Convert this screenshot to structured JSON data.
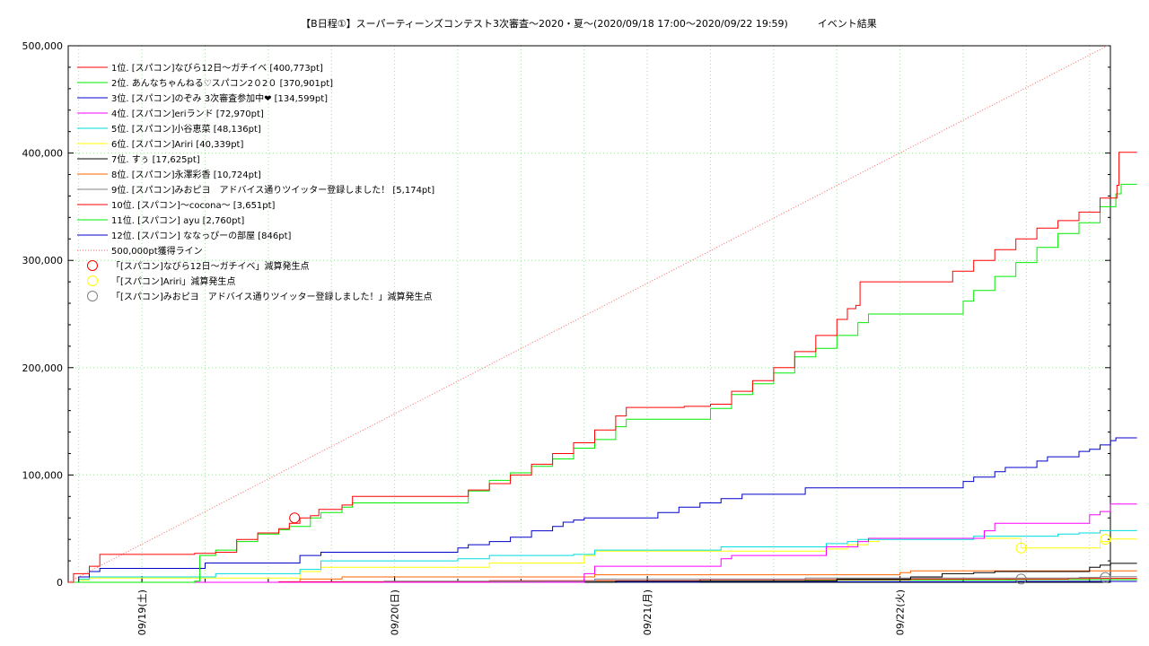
{
  "chart_data": {
    "type": "line",
    "title": "【B日程①】スーパーティーンズコンテスト3次審査〜2020・夏〜(2020/09/18 17:00〜2020/09/22 19:59)　　　イベント結果",
    "xlabel": "",
    "ylabel": "",
    "x_range": [
      "09/18 17:00",
      "09/22 19:59"
    ],
    "ylim": [
      0,
      500000
    ],
    "y_ticks": [
      "0",
      "100,000",
      "200,000",
      "300,000",
      "400,000",
      "500,000"
    ],
    "x_ticks": [
      {
        "label": "09/19(土)",
        "t": 7
      },
      {
        "label": "09/20(日)",
        "t": 31
      },
      {
        "label": "09/21(月)",
        "t": 55
      },
      {
        "label": "09/22(火)",
        "t": 79
      }
    ],
    "grid": true,
    "legend_position": "top-left",
    "series": [
      {
        "name": "1位. [スパコン]なびら12日〜ガチイベ [400,773pt]",
        "color": "#ff0000",
        "points": [
          [
            0,
            0
          ],
          [
            0.5,
            8000
          ],
          [
            2,
            15000
          ],
          [
            3,
            26000
          ],
          [
            12,
            27000
          ],
          [
            14,
            28000
          ],
          [
            16,
            40000
          ],
          [
            18,
            46000
          ],
          [
            20,
            50000
          ],
          [
            21,
            55000
          ],
          [
            22,
            60000
          ],
          [
            23,
            62000
          ],
          [
            23.8,
            68000
          ],
          [
            26,
            72000
          ],
          [
            27,
            80000
          ],
          [
            36,
            80000
          ],
          [
            38,
            86000
          ],
          [
            40,
            92000
          ],
          [
            42,
            100000
          ],
          [
            44,
            110000
          ],
          [
            46,
            120000
          ],
          [
            48,
            130000
          ],
          [
            50,
            142000
          ],
          [
            52,
            155000
          ],
          [
            53,
            163000
          ],
          [
            58.5,
            164000
          ],
          [
            61,
            166000
          ],
          [
            63,
            178000
          ],
          [
            65,
            188000
          ],
          [
            67,
            200000
          ],
          [
            69,
            215000
          ],
          [
            71,
            230000
          ],
          [
            73,
            245000
          ],
          [
            74,
            255000
          ],
          [
            74.8,
            258000
          ],
          [
            75.2,
            280000
          ],
          [
            82,
            280000
          ],
          [
            84,
            290000
          ],
          [
            86,
            300000
          ],
          [
            88,
            310000
          ],
          [
            90,
            320000
          ],
          [
            92,
            330000
          ],
          [
            94,
            337000
          ],
          [
            96,
            345000
          ],
          [
            98,
            358000
          ],
          [
            99.6,
            370000
          ],
          [
            99.8,
            400773
          ],
          [
            101.5,
            400773
          ]
        ]
      },
      {
        "name": "2位. あんなちゃんねる♡スパコン2０2０ [370,901pt]",
        "color": "#00ee00",
        "points": [
          [
            0,
            0
          ],
          [
            12,
            1000
          ],
          [
            12.5,
            25000
          ],
          [
            14,
            30000
          ],
          [
            16,
            38000
          ],
          [
            18,
            45000
          ],
          [
            20,
            49000
          ],
          [
            21,
            52000
          ],
          [
            23,
            60000
          ],
          [
            24,
            65000
          ],
          [
            26,
            70000
          ],
          [
            27,
            74000
          ],
          [
            36,
            74000
          ],
          [
            38,
            85000
          ],
          [
            40,
            95000
          ],
          [
            42,
            102000
          ],
          [
            44,
            108000
          ],
          [
            46,
            115000
          ],
          [
            48,
            125000
          ],
          [
            50,
            133000
          ],
          [
            52,
            145000
          ],
          [
            53,
            152000
          ],
          [
            60,
            152000
          ],
          [
            61,
            162000
          ],
          [
            63,
            175000
          ],
          [
            65,
            185000
          ],
          [
            67,
            195000
          ],
          [
            69,
            210000
          ],
          [
            71,
            218000
          ],
          [
            73,
            230000
          ],
          [
            75,
            242000
          ],
          [
            76,
            250000
          ],
          [
            84,
            250000
          ],
          [
            85,
            262000
          ],
          [
            86,
            272000
          ],
          [
            88,
            285000
          ],
          [
            90,
            298000
          ],
          [
            92,
            312000
          ],
          [
            94,
            325000
          ],
          [
            96,
            335000
          ],
          [
            98,
            350000
          ],
          [
            99.5,
            362000
          ],
          [
            100,
            370901
          ],
          [
            101.5,
            370901
          ]
        ]
      },
      {
        "name": "3位. [スパコン]のぞみ 3次審査参加中❤ [134,599pt]",
        "color": "#0000cc",
        "points": [
          [
            0,
            0
          ],
          [
            1,
            5000
          ],
          [
            2,
            10000
          ],
          [
            3,
            13000
          ],
          [
            12,
            13000
          ],
          [
            13,
            18000
          ],
          [
            21,
            18000
          ],
          [
            22,
            25000
          ],
          [
            24,
            28000
          ],
          [
            36,
            28000
          ],
          [
            37,
            32000
          ],
          [
            38,
            35000
          ],
          [
            40,
            38000
          ],
          [
            42,
            42000
          ],
          [
            44,
            48000
          ],
          [
            46,
            52000
          ],
          [
            47,
            56000
          ],
          [
            48,
            58000
          ],
          [
            49,
            60000
          ],
          [
            55,
            60000
          ],
          [
            56,
            65000
          ],
          [
            58,
            70000
          ],
          [
            60,
            74000
          ],
          [
            62,
            78000
          ],
          [
            64,
            82000
          ],
          [
            69,
            82000
          ],
          [
            70,
            88000
          ],
          [
            84,
            88000
          ],
          [
            85,
            94000
          ],
          [
            86,
            98000
          ],
          [
            88,
            103000
          ],
          [
            89,
            107000
          ],
          [
            91,
            107000
          ],
          [
            92,
            113000
          ],
          [
            93,
            117000
          ],
          [
            95,
            117000
          ],
          [
            96,
            122000
          ],
          [
            97,
            124000
          ],
          [
            98,
            128000
          ],
          [
            99,
            132000
          ],
          [
            99.5,
            134599
          ],
          [
            101.5,
            134599
          ]
        ]
      },
      {
        "name": "4位. [スパコン]eriランド [72,970pt]",
        "color": "#ff00ff",
        "points": [
          [
            0,
            0
          ],
          [
            48,
            0
          ],
          [
            49,
            8000
          ],
          [
            50,
            15000
          ],
          [
            61,
            15000
          ],
          [
            62,
            22000
          ],
          [
            63,
            25000
          ],
          [
            71,
            25000
          ],
          [
            72,
            33000
          ],
          [
            75,
            38000
          ],
          [
            76,
            41000
          ],
          [
            85,
            41000
          ],
          [
            87,
            48000
          ],
          [
            88,
            55000
          ],
          [
            96,
            55000
          ],
          [
            97,
            63000
          ],
          [
            98,
            66000
          ],
          [
            99,
            72970
          ],
          [
            101.5,
            72970
          ]
        ]
      },
      {
        "name": "5位. [スパコン]小谷恵菜 [48,136pt]",
        "color": "#00dddd",
        "points": [
          [
            0,
            0
          ],
          [
            1,
            3000
          ],
          [
            2,
            5000
          ],
          [
            12,
            5000
          ],
          [
            14,
            8000
          ],
          [
            22,
            12000
          ],
          [
            24,
            20000
          ],
          [
            36,
            20000
          ],
          [
            37,
            22000
          ],
          [
            40,
            25000
          ],
          [
            48,
            26000
          ],
          [
            50,
            30000
          ],
          [
            61,
            30000
          ],
          [
            62,
            33000
          ],
          [
            70,
            33000
          ],
          [
            72,
            36000
          ],
          [
            74,
            38000
          ],
          [
            75,
            40000
          ],
          [
            84,
            40000
          ],
          [
            86,
            43000
          ],
          [
            92,
            43000
          ],
          [
            94,
            45000
          ],
          [
            96,
            46000
          ],
          [
            98,
            48136
          ],
          [
            101.5,
            48136
          ]
        ]
      },
      {
        "name": "6位. [スパコン]Ariri [40,339pt]",
        "color": "#ffff00",
        "points": [
          [
            0,
            0
          ],
          [
            1,
            2000
          ],
          [
            2,
            4000
          ],
          [
            22,
            10000
          ],
          [
            24,
            14000
          ],
          [
            38,
            14000
          ],
          [
            40,
            18000
          ],
          [
            48,
            18000
          ],
          [
            49,
            25000
          ],
          [
            50,
            29000
          ],
          [
            70,
            29000
          ],
          [
            72,
            31000
          ],
          [
            74,
            35000
          ],
          [
            76,
            38000
          ],
          [
            77,
            41000
          ],
          [
            90,
            41000
          ],
          [
            90.5,
            32000
          ],
          [
            96,
            32000
          ],
          [
            98,
            38000
          ],
          [
            99,
            40339
          ],
          [
            101.5,
            40339
          ]
        ]
      },
      {
        "name": "7位. すぅ [17,625pt]",
        "color": "#000000",
        "points": [
          [
            0,
            0
          ],
          [
            50,
            0
          ],
          [
            52,
            1000
          ],
          [
            72,
            1000
          ],
          [
            73,
            3000
          ],
          [
            80,
            5000
          ],
          [
            83,
            8000
          ],
          [
            86,
            9000
          ],
          [
            88,
            10000
          ],
          [
            96,
            10000
          ],
          [
            97,
            14000
          ],
          [
            98,
            16000
          ],
          [
            99,
            17625
          ],
          [
            101.5,
            17625
          ]
        ]
      },
      {
        "name": "8位. [スパコン]永澤彩香 [10,724pt]",
        "color": "#ff6600",
        "points": [
          [
            0,
            0
          ],
          [
            20,
            0
          ],
          [
            22,
            3000
          ],
          [
            26,
            5000
          ],
          [
            48,
            5000
          ],
          [
            50,
            7000
          ],
          [
            78,
            7000
          ],
          [
            79,
            9000
          ],
          [
            80,
            10724
          ],
          [
            101.5,
            10724
          ]
        ]
      },
      {
        "name": "9位. [スパコン]みおピヨ　アドバイス通りツイッター登録しました！ [5,174pt]",
        "color": "#808080",
        "points": [
          [
            0,
            0
          ],
          [
            30,
            1000
          ],
          [
            50,
            3000
          ],
          [
            70,
            4000
          ],
          [
            90,
            4000
          ],
          [
            96,
            4500
          ],
          [
            98,
            5174
          ],
          [
            101.5,
            5174
          ]
        ]
      },
      {
        "name": "10位. [スパコン]〜cocona〜 [3,651pt]",
        "color": "#ff0000",
        "points": [
          [
            0,
            0
          ],
          [
            20,
            500
          ],
          [
            40,
            1500
          ],
          [
            60,
            2500
          ],
          [
            80,
            3000
          ],
          [
            95,
            3500
          ],
          [
            97,
            3651
          ],
          [
            101.5,
            3651
          ]
        ]
      },
      {
        "name": "11位. [スパコン] ayu [2,760pt]",
        "color": "#00ee00",
        "points": [
          [
            0,
            0
          ],
          [
            25,
            500
          ],
          [
            45,
            1200
          ],
          [
            70,
            2000
          ],
          [
            90,
            2500
          ],
          [
            101.5,
            2760
          ]
        ]
      },
      {
        "name": "12位. [スパコン] ななっぴーの部屋 [846pt]",
        "color": "#0000cc",
        "points": [
          [
            0,
            0
          ],
          [
            30,
            200
          ],
          [
            60,
            500
          ],
          [
            90,
            800
          ],
          [
            101.5,
            846
          ]
        ]
      },
      {
        "name": "500,000pt獲得ライン",
        "color": "#ff6666",
        "style": "dotted",
        "points": [
          [
            0,
            0
          ],
          [
            98.7,
            500000
          ]
        ]
      }
    ],
    "markers": [
      {
        "name": "「[スパコン]なびら12日〜ガチイベ」減算発生点",
        "color": "#ff0000",
        "points": [
          [
            21.5,
            60000
          ]
        ]
      },
      {
        "name": "「[スパコン]Ariri」減算発生点",
        "color": "#ffff00",
        "points": [
          [
            90.5,
            32000
          ],
          [
            98.5,
            40000
          ]
        ]
      },
      {
        "name": "「[スパコン]みおピヨ　アドバイス通りツイッター登録しました！」減算発生点",
        "color": "#808080",
        "points": [
          [
            90.5,
            3000
          ],
          [
            98.5,
            4500
          ]
        ]
      }
    ]
  }
}
